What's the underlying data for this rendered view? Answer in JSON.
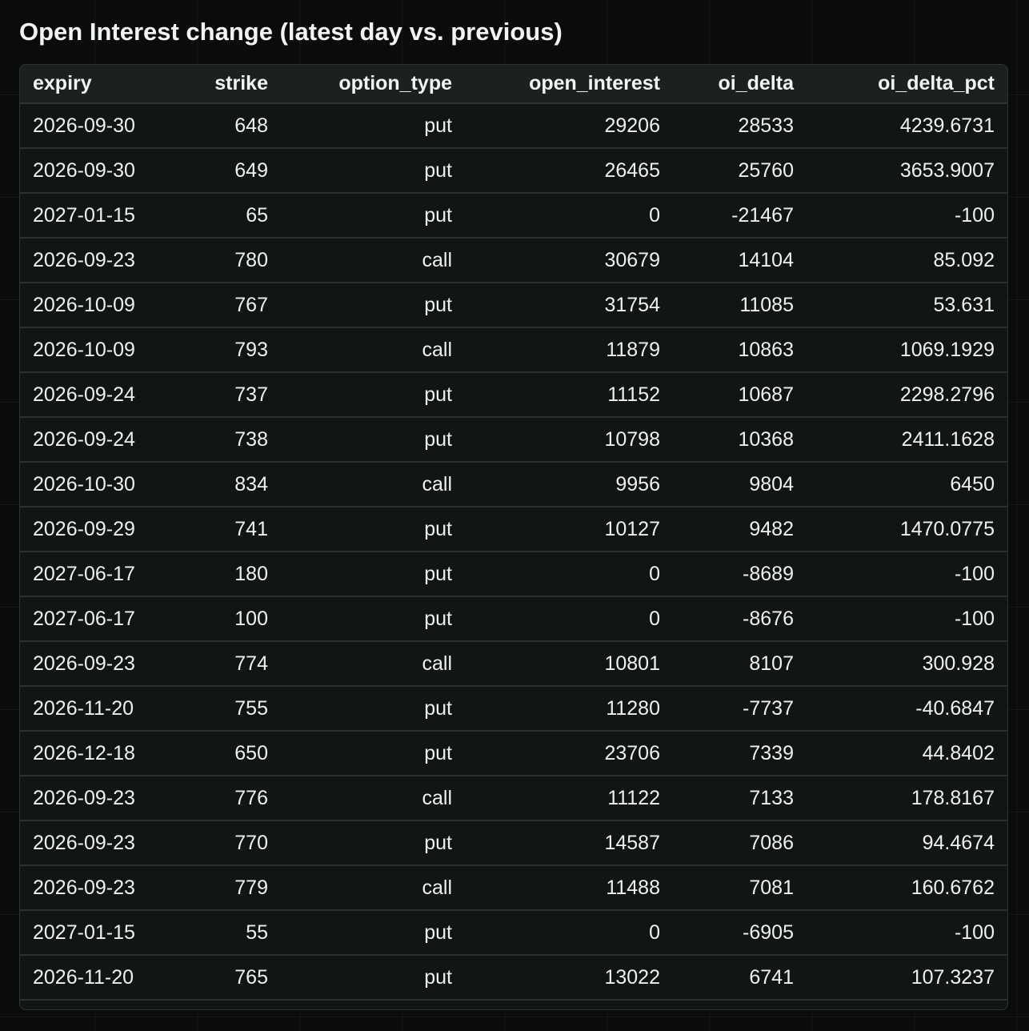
{
  "title": "Open Interest change (latest day vs. previous)",
  "table": {
    "columns": [
      "expiry",
      "strike",
      "option_type",
      "open_interest",
      "oi_delta",
      "oi_delta_pct"
    ],
    "rows": [
      [
        "2026-09-30",
        "648",
        "put",
        "29206",
        "28533",
        "4239.6731"
      ],
      [
        "2026-09-30",
        "649",
        "put",
        "26465",
        "25760",
        "3653.9007"
      ],
      [
        "2027-01-15",
        "65",
        "put",
        "0",
        "-21467",
        "-100"
      ],
      [
        "2026-09-23",
        "780",
        "call",
        "30679",
        "14104",
        "85.092"
      ],
      [
        "2026-10-09",
        "767",
        "put",
        "31754",
        "11085",
        "53.631"
      ],
      [
        "2026-10-09",
        "793",
        "call",
        "11879",
        "10863",
        "1069.1929"
      ],
      [
        "2026-09-24",
        "737",
        "put",
        "11152",
        "10687",
        "2298.2796"
      ],
      [
        "2026-09-24",
        "738",
        "put",
        "10798",
        "10368",
        "2411.1628"
      ],
      [
        "2026-10-30",
        "834",
        "call",
        "9956",
        "9804",
        "6450"
      ],
      [
        "2026-09-29",
        "741",
        "put",
        "10127",
        "9482",
        "1470.0775"
      ],
      [
        "2027-06-17",
        "180",
        "put",
        "0",
        "-8689",
        "-100"
      ],
      [
        "2027-06-17",
        "100",
        "put",
        "0",
        "-8676",
        "-100"
      ],
      [
        "2026-09-23",
        "774",
        "call",
        "10801",
        "8107",
        "300.928"
      ],
      [
        "2026-11-20",
        "755",
        "put",
        "11280",
        "-7737",
        "-40.6847"
      ],
      [
        "2026-12-18",
        "650",
        "put",
        "23706",
        "7339",
        "44.8402"
      ],
      [
        "2026-09-23",
        "776",
        "call",
        "11122",
        "7133",
        "178.8167"
      ],
      [
        "2026-09-23",
        "770",
        "put",
        "14587",
        "7086",
        "94.4674"
      ],
      [
        "2026-09-23",
        "779",
        "call",
        "11488",
        "7081",
        "160.6762"
      ],
      [
        "2027-01-15",
        "55",
        "put",
        "0",
        "-6905",
        "-100"
      ],
      [
        "2026-11-20",
        "765",
        "put",
        "13022",
        "6741",
        "107.3237"
      ]
    ]
  }
}
